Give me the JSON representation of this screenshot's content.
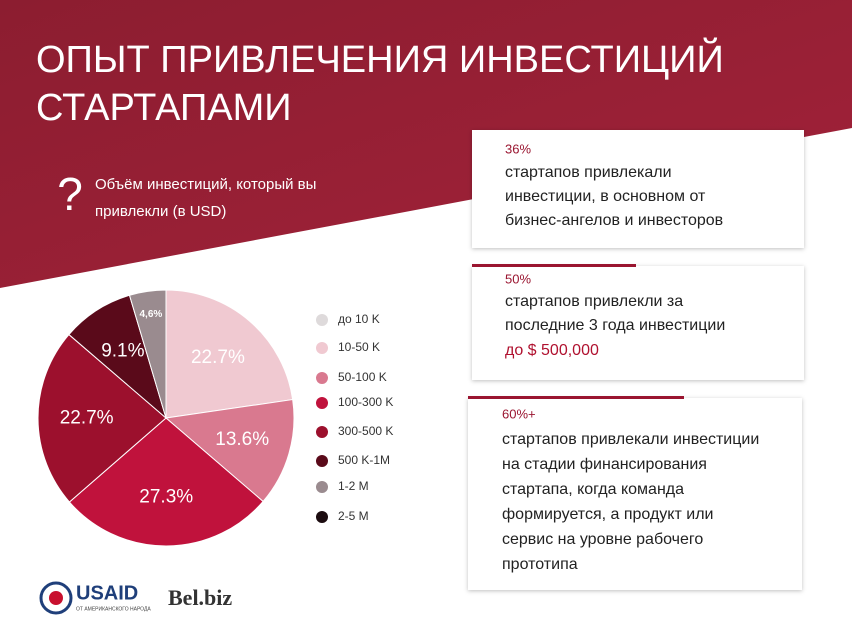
{
  "header": {
    "title_lines": [
      "ОПЫТ ПРИВЛЕЧЕНИЯ ИНВЕСТИЦИЙ",
      "СТАРТАПАМИ"
    ]
  },
  "chart_data": {
    "type": "pie",
    "title_lines": [
      "Объём инвестиций, который вы",
      "привлекли (в USD)"
    ],
    "categories": [
      "до 10 K",
      "10-50 K",
      "50-100 K",
      "100-300 K",
      "300-500 K",
      "500 K-1M",
      "1-2 M",
      "2-5 M"
    ],
    "values": [
      0,
      22.7,
      13.6,
      27.3,
      22.7,
      9.1,
      4.6,
      0
    ],
    "value_labels": [
      null,
      "22.7%",
      "13.6%",
      "27.3%",
      "22.7%",
      "9.1%",
      "4,6%",
      null
    ],
    "colors": [
      "#dedadb",
      "#f0c9d1",
      "#d9798f",
      "#c0123c",
      "#9c102d",
      "#5a0a1a",
      "#9a8b8f",
      "#1c0c10"
    ],
    "legend": "right"
  },
  "cards": [
    {
      "highlight": "36%",
      "lines": [
        "стартапов привлекали",
        "инвестиции, в основном от",
        "бизнес-ангелов и инвесторов"
      ]
    },
    {
      "highlight": "50%",
      "lines": [
        "стартапов привлекли за",
        "последние 3 года инвестиции"
      ],
      "accent": "до $ 500,000"
    },
    {
      "highlight": "60%+",
      "lines": [
        "стартапов привлекали инвестиции",
        "на стадии финансирования",
        "стартапа, когда команда",
        "формируется, а продукт или",
        "сервис на уровне рабочего",
        "прототипа"
      ]
    }
  ],
  "footer": {
    "logo_usaid": "USAID",
    "logo_usaid_sub": "ОТ АМЕРИКАНСКОГО НАРОДА",
    "logo_bel": "Bel.biz"
  }
}
